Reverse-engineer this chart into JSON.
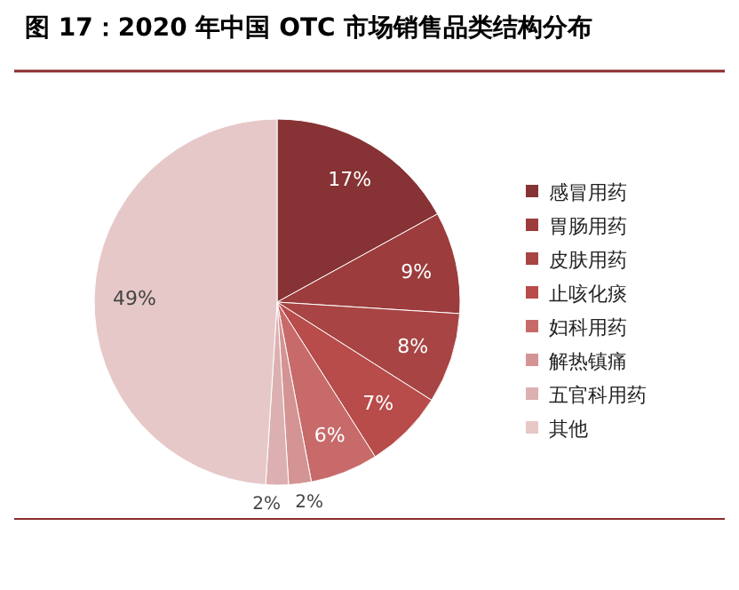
{
  "chart_data": {
    "type": "pie",
    "title": "图 17：2020 年中国 OTC 市场销售品类结构分布",
    "categories": [
      "感冒用药",
      "胃肠用药",
      "皮肤用药",
      "止咳化痰",
      "妇科用药",
      "解热镇痛",
      "五官科用药",
      "其他"
    ],
    "values": [
      17,
      9,
      8,
      7,
      6,
      2,
      2,
      49
    ],
    "value_labels": [
      "17%",
      "9%",
      "8%",
      "7%",
      "6%",
      "2%",
      "2%",
      "49%"
    ],
    "colors": [
      "#873234",
      "#9c3c3c",
      "#a84444",
      "#b74c4a",
      "#c86a6a",
      "#d49494",
      "#dcb0b0",
      "#e6c8c8"
    ],
    "legend": "right"
  }
}
